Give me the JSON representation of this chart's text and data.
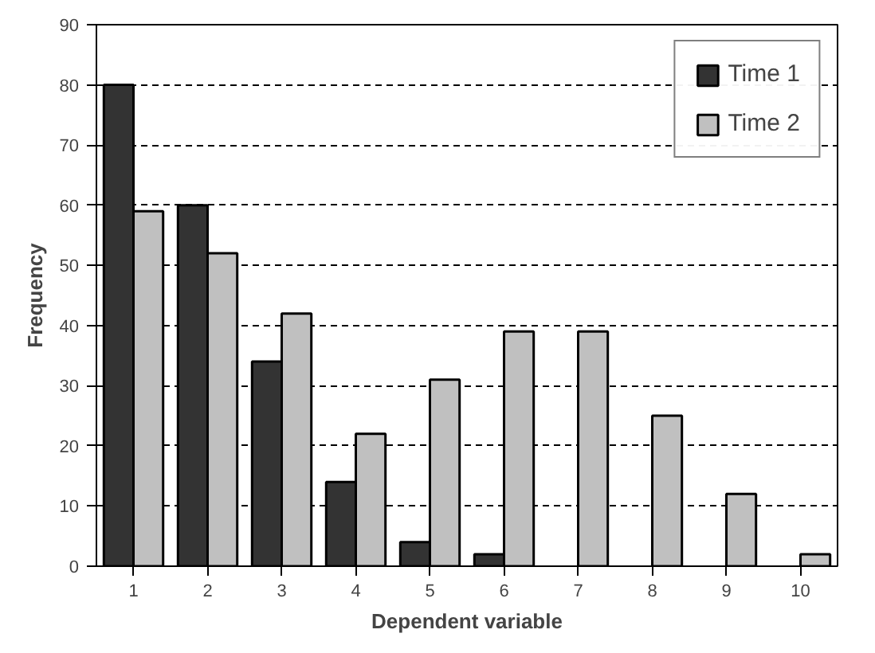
{
  "chart_data": {
    "type": "bar",
    "xlabel": "Dependent variable",
    "ylabel": "Frequency",
    "categories": [
      "1",
      "2",
      "3",
      "4",
      "5",
      "6",
      "7",
      "8",
      "9",
      "10"
    ],
    "series": [
      {
        "name": "Time 1",
        "color": "#333333",
        "values": [
          80,
          60,
          34,
          14,
          4,
          2,
          null,
          null,
          null,
          null
        ]
      },
      {
        "name": "Time 2",
        "color": "#c0c0c0",
        "values": [
          59,
          52,
          42,
          22,
          31,
          39,
          39,
          25,
          12,
          2
        ]
      }
    ],
    "ylim": [
      0,
      90
    ],
    "yticks": [
      0,
      10,
      20,
      30,
      40,
      50,
      60,
      70,
      80,
      90
    ],
    "grid": "y",
    "legend": "top right"
  }
}
